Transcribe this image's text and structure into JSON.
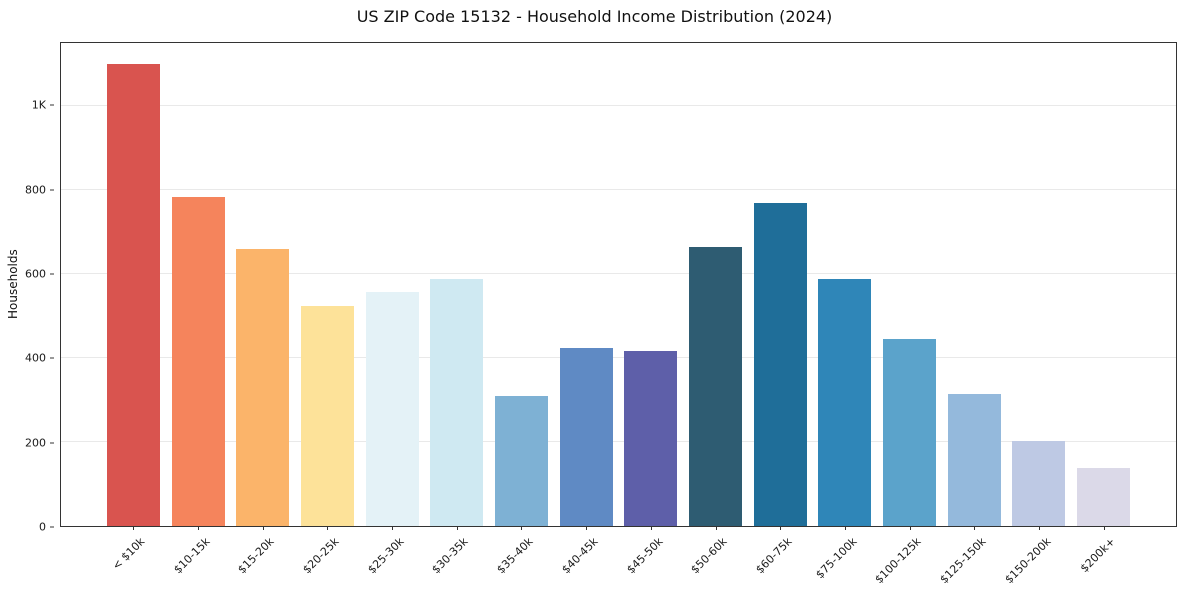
{
  "chart_data": {
    "type": "bar",
    "title": "US ZIP Code 15132 - Household Income Distribution (2024)",
    "xlabel": "",
    "ylabel": "Households",
    "ylim": [
      0,
      1150
    ],
    "grid": "horizontal",
    "legend": "none",
    "categories": [
      "< $10k",
      "$10-15k",
      "$15-20k",
      "$20-25k",
      "$25-30k",
      "$30-35k",
      "$35-40k",
      "$40-45k",
      "$45-50k",
      "$50-60k",
      "$60-75k",
      "$75-100k",
      "$100-125k",
      "$125-150k",
      "$150-200k",
      "$200k+"
    ],
    "values": [
      1100,
      783,
      660,
      524,
      557,
      588,
      309,
      424,
      416,
      665,
      768,
      588,
      446,
      314,
      202,
      137
    ],
    "bar_colors": [
      "#d9544f",
      "#f5845c",
      "#fbb46a",
      "#fde299",
      "#e4f2f7",
      "#cfe9f2",
      "#7eb1d4",
      "#5f8ac4",
      "#5e5fa9",
      "#2e5c72",
      "#1f6e99",
      "#2f86b8",
      "#5ba3cb",
      "#94b9dc",
      "#bec9e4",
      "#dbd9e8"
    ],
    "yticks": [
      {
        "value": 0,
        "label": "0"
      },
      {
        "value": 200,
        "label": "200"
      },
      {
        "value": 400,
        "label": "400"
      },
      {
        "value": 600,
        "label": "600"
      },
      {
        "value": 800,
        "label": "800"
      },
      {
        "value": 1000,
        "label": "1K"
      }
    ]
  }
}
